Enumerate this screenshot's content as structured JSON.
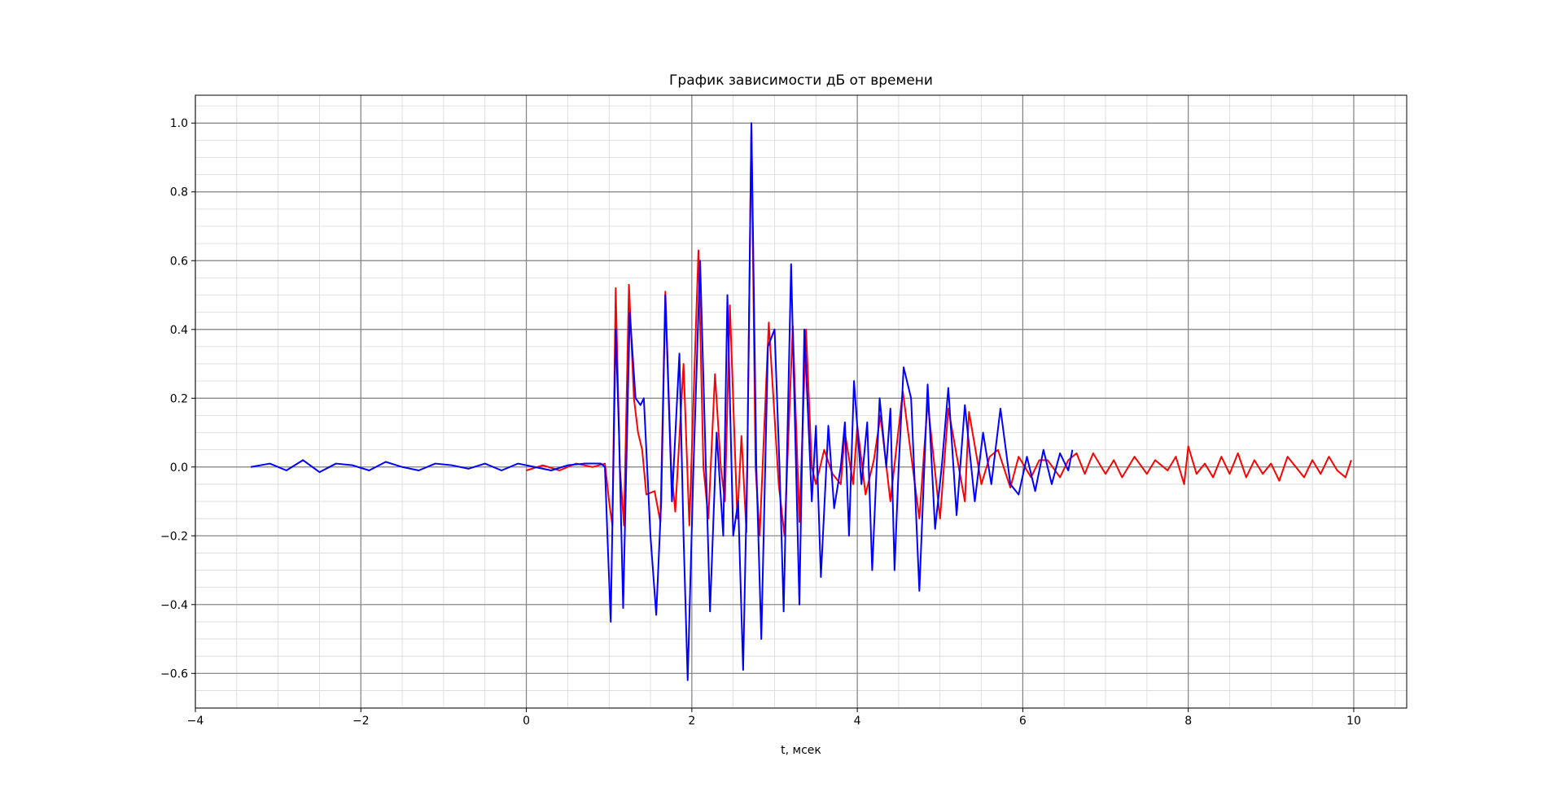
{
  "chart_data": {
    "type": "line",
    "title": "График зависимости дБ от времени",
    "x_label": "t, мсек",
    "xlim": [
      -4.0,
      10.64
    ],
    "ylim": [
      -0.701,
      1.081
    ],
    "xticks": [
      {
        "value": -4,
        "label": "−4"
      },
      {
        "value": -2,
        "label": "−2"
      },
      0,
      2,
      4,
      6,
      8,
      10
    ],
    "yticks": [
      {
        "value": -0.6,
        "label": "−0.6"
      },
      {
        "value": -0.4,
        "label": "−0.4"
      },
      {
        "value": -0.2,
        "label": "−0.2"
      },
      {
        "value": 0,
        "label": "0.0"
      },
      0.2,
      0.4,
      0.6,
      0.8,
      {
        "value": 1,
        "label": "1.0"
      }
    ],
    "grid": true,
    "minor_grid": true,
    "series": [
      {
        "color": "#ff0000",
        "x": [
          0,
          0.2,
          0.4,
          0.6,
          0.8,
          0.95,
          1.0,
          1.04,
          1.08,
          1.13,
          1.18,
          1.24,
          1.3,
          1.35,
          1.4,
          1.45,
          1.55,
          1.62,
          1.68,
          1.75,
          1.8,
          1.9,
          1.97,
          2.08,
          2.14,
          2.2,
          2.28,
          2.35,
          2.4,
          2.46,
          2.55,
          2.6,
          2.66,
          2.72,
          2.77,
          2.82,
          2.93,
          3.05,
          3.12,
          3.22,
          3.3,
          3.38,
          3.45,
          3.5,
          3.6,
          3.7,
          3.8,
          3.85,
          3.95,
          4.0,
          4.1,
          4.2,
          4.28,
          4.4,
          4.55,
          4.75,
          4.85,
          5.0,
          5.1,
          5.3,
          5.35,
          5.5,
          5.6,
          5.7,
          5.85,
          5.95,
          6.1,
          6.2,
          6.3,
          6.45,
          6.55,
          6.65,
          6.75,
          6.85,
          7.0,
          7.1,
          7.2,
          7.35,
          7.5,
          7.6,
          7.75,
          7.85,
          7.95,
          8.0,
          8.1,
          8.2,
          8.3,
          8.4,
          8.5,
          8.6,
          8.7,
          8.8,
          8.9,
          9.0,
          9.1,
          9.2,
          9.3,
          9.4,
          9.5,
          9.6,
          9.7,
          9.8,
          9.9,
          9.97
        ],
        "values": [
          -0.01,
          0.005,
          -0.01,
          0.01,
          0.0,
          0.01,
          -0.1,
          -0.17,
          0.52,
          0.0,
          -0.17,
          0.53,
          0.2,
          0.1,
          0.05,
          -0.08,
          -0.07,
          -0.16,
          0.51,
          0.0,
          -0.13,
          0.3,
          -0.17,
          0.63,
          0.0,
          -0.15,
          0.27,
          0.0,
          -0.1,
          0.47,
          -0.15,
          0.09,
          -0.19,
          1.0,
          0.0,
          -0.2,
          0.42,
          -0.05,
          -0.2,
          0.41,
          -0.16,
          0.4,
          0.0,
          -0.05,
          0.05,
          -0.02,
          -0.05,
          0.1,
          -0.05,
          0.12,
          -0.08,
          0.02,
          0.15,
          -0.1,
          0.22,
          -0.15,
          0.19,
          -0.15,
          0.17,
          -0.1,
          0.16,
          -0.05,
          0.03,
          0.05,
          -0.06,
          0.03,
          -0.03,
          0.02,
          0.02,
          -0.03,
          0.02,
          0.04,
          -0.02,
          0.04,
          -0.02,
          0.02,
          -0.03,
          0.03,
          -0.02,
          0.02,
          -0.01,
          0.03,
          -0.05,
          0.06,
          -0.02,
          0.01,
          -0.03,
          0.03,
          -0.02,
          0.04,
          -0.03,
          0.02,
          -0.02,
          0.01,
          -0.04,
          0.03,
          0.0,
          -0.03,
          0.02,
          -0.02,
          0.03,
          -0.01,
          -0.03,
          0.02
        ]
      },
      {
        "color": "#0000ff",
        "x": [
          -3.33,
          -3.1,
          -2.9,
          -2.7,
          -2.5,
          -2.3,
          -2.1,
          -1.9,
          -1.7,
          -1.5,
          -1.3,
          -1.1,
          -0.9,
          -0.7,
          -0.5,
          -0.3,
          -0.1,
          0.1,
          0.3,
          0.5,
          0.7,
          0.9,
          0.95,
          0.98,
          1.02,
          1.08,
          1.12,
          1.17,
          1.25,
          1.32,
          1.38,
          1.42,
          1.5,
          1.57,
          1.63,
          1.68,
          1.76,
          1.85,
          1.9,
          1.95,
          2.02,
          2.1,
          2.17,
          2.22,
          2.3,
          2.38,
          2.43,
          2.5,
          2.56,
          2.62,
          2.67,
          2.72,
          2.78,
          2.84,
          2.92,
          3.0,
          3.06,
          3.11,
          3.2,
          3.3,
          3.36,
          3.45,
          3.5,
          3.56,
          3.65,
          3.72,
          3.8,
          3.85,
          3.9,
          3.96,
          4.05,
          4.12,
          4.18,
          4.27,
          4.35,
          4.4,
          4.45,
          4.5,
          4.56,
          4.65,
          4.75,
          4.85,
          4.94,
          5.02,
          5.1,
          5.2,
          5.3,
          5.42,
          5.52,
          5.62,
          5.73,
          5.85,
          5.95,
          6.05,
          6.15,
          6.25,
          6.35,
          6.45,
          6.55,
          6.6
        ],
        "values": [
          0,
          0.01,
          -0.01,
          0.02,
          -0.015,
          0.01,
          0.005,
          -0.01,
          0.015,
          0,
          -0.01,
          0.01,
          0.005,
          -0.005,
          0.01,
          -0.01,
          0.01,
          0,
          -0.01,
          0.005,
          0.01,
          0.01,
          0.0,
          -0.2,
          -0.45,
          0.4,
          0.1,
          -0.41,
          0.45,
          0.2,
          0.18,
          0.2,
          -0.2,
          -0.43,
          -0.1,
          0.5,
          -0.1,
          0.33,
          -0.2,
          -0.62,
          0.0,
          0.6,
          0.0,
          -0.42,
          0.1,
          -0.2,
          0.5,
          -0.2,
          -0.1,
          -0.59,
          0.0,
          1.0,
          0.0,
          -0.5,
          0.35,
          0.4,
          0.0,
          -0.42,
          0.59,
          -0.4,
          0.4,
          -0.1,
          0.12,
          -0.32,
          0.12,
          -0.12,
          0.0,
          0.13,
          -0.2,
          0.25,
          -0.05,
          0.13,
          -0.3,
          0.2,
          0.0,
          0.17,
          -0.3,
          0.0,
          0.29,
          0.2,
          -0.36,
          0.24,
          -0.18,
          0.0,
          0.23,
          -0.14,
          0.18,
          -0.1,
          0.1,
          -0.05,
          0.17,
          -0.05,
          -0.08,
          0.03,
          -0.07,
          0.05,
          -0.05,
          0.04,
          -0.01,
          0.05
        ]
      }
    ]
  }
}
